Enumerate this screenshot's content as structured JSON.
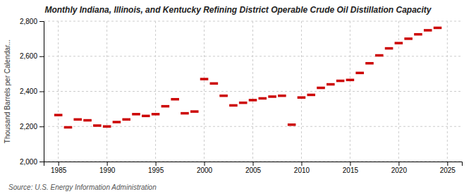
{
  "chart_data": {
    "type": "segment",
    "title": "Monthly Indiana, Illinois, and Kentucky Refining District Operable Crude Oil Distillation Capacity",
    "y_label": "Thousand Barrels per Calendar...",
    "annotations": [
      "Source: U.S. Energy Information Administration"
    ],
    "x": [
      1985,
      1986,
      1987,
      1988,
      1989,
      1990,
      1991,
      1992,
      1993,
      1994,
      1995,
      1996,
      1997,
      1998,
      1999,
      2000,
      2001,
      2002,
      2003,
      2004,
      2005,
      2006,
      2007,
      2008,
      2009,
      2010,
      2011,
      2012,
      2013,
      2014,
      2015,
      2016,
      2017,
      2018,
      2019,
      2020,
      2021,
      2022,
      2023,
      2024
    ],
    "values": [
      2265,
      2195,
      2240,
      2235,
      2205,
      2200,
      2225,
      2240,
      2270,
      2260,
      2270,
      2315,
      2355,
      2275,
      2285,
      2470,
      2445,
      2375,
      2320,
      2335,
      2350,
      2360,
      2370,
      2375,
      2210,
      2365,
      2380,
      2420,
      2440,
      2460,
      2465,
      2505,
      2560,
      2605,
      2645,
      2675,
      2700,
      2725,
      2748,
      2762
    ],
    "color": "#cc0000",
    "xlim": [
      1983.5,
      2026.5
    ],
    "xticks": [
      1985,
      1990,
      1995,
      2000,
      2005,
      2010,
      2015,
      2020,
      2025
    ],
    "ylim": [
      2000,
      2800
    ],
    "yticks": [
      {
        "value": 2000,
        "label": "2,000"
      },
      {
        "value": 2200,
        "label": "2,200"
      },
      {
        "value": 2400,
        "label": "2,400"
      },
      {
        "value": 2600,
        "label": "2,600"
      },
      {
        "value": 2800,
        "label": "2,800"
      }
    ],
    "grid": true
  }
}
